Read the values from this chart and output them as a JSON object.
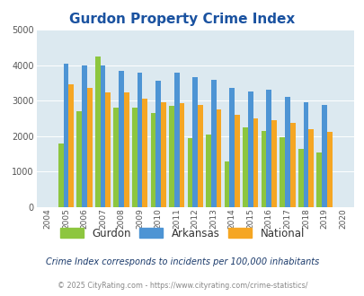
{
  "title": "Gurdon Property Crime Index",
  "years": [
    2004,
    2005,
    2006,
    2007,
    2008,
    2009,
    2010,
    2011,
    2012,
    2013,
    2014,
    2015,
    2016,
    2017,
    2018,
    2019,
    2020
  ],
  "gurdon": [
    0,
    1800,
    2700,
    4250,
    2800,
    2800,
    2650,
    2850,
    1950,
    2050,
    1300,
    2250,
    2150,
    1980,
    1650,
    1550,
    0
  ],
  "arkansas": [
    0,
    4050,
    3980,
    3980,
    3830,
    3780,
    3560,
    3780,
    3660,
    3580,
    3360,
    3260,
    3310,
    3100,
    2960,
    2880,
    0
  ],
  "national": [
    0,
    3450,
    3350,
    3240,
    3220,
    3060,
    2960,
    2940,
    2890,
    2760,
    2610,
    2490,
    2460,
    2370,
    2200,
    2120,
    0
  ],
  "bar_colors": {
    "gurdon": "#8dc63f",
    "arkansas": "#4d94d4",
    "national": "#f5a623"
  },
  "ylim": [
    0,
    5000
  ],
  "yticks": [
    0,
    1000,
    2000,
    3000,
    4000,
    5000
  ],
  "plot_bg": "#dce9f0",
  "title_color": "#1a52a0",
  "footer_text": "Crime Index corresponds to incidents per 100,000 inhabitants",
  "copyright_text": "© 2025 CityRating.com - https://www.cityrating.com/crime-statistics/",
  "bar_width": 0.28,
  "legend_labels": [
    "Gurdon",
    "Arkansas",
    "National"
  ]
}
